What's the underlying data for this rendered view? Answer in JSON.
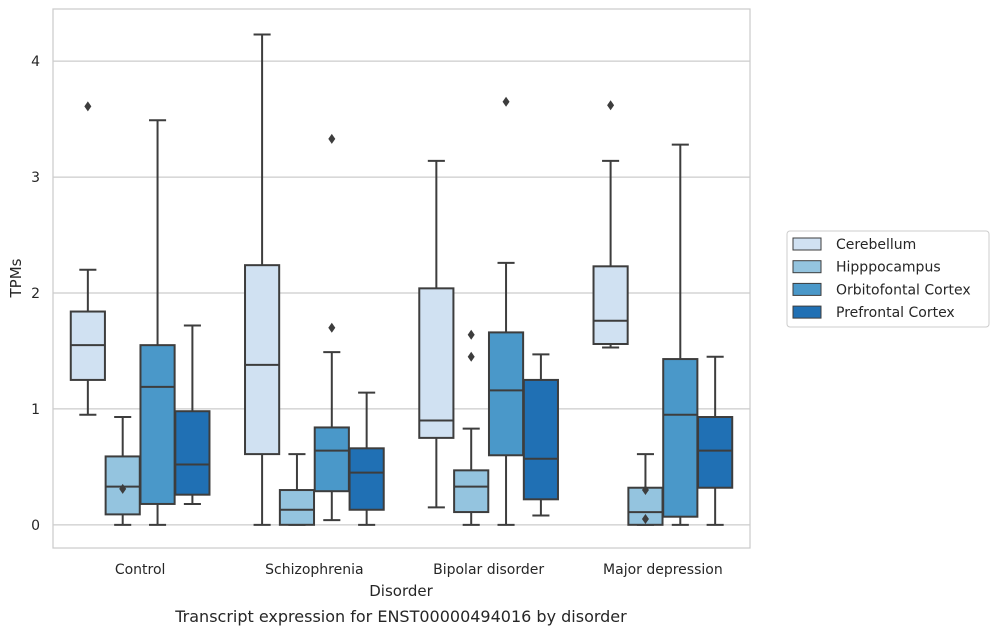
{
  "chart_data": {
    "type": "box",
    "title": "",
    "caption": "Transcript expression for ENST00000494016 by disorder",
    "xlabel": "Disorder",
    "ylabel": "TPMs",
    "ylim": [
      -0.2,
      4.45
    ],
    "yticks": [
      0,
      1,
      2,
      3,
      4
    ],
    "grid": "horizontal",
    "legend_position": "right",
    "categories": [
      "Control",
      "Schizophrenia",
      "Bipolar disorder",
      "Major depression"
    ],
    "series": [
      {
        "name": "Cerebellum",
        "color": "#d0e1f2",
        "boxes": [
          {
            "whislo": 0.95,
            "q1": 1.25,
            "med": 1.55,
            "q3": 1.84,
            "whishi": 2.2,
            "fliers": [
              3.61
            ]
          },
          {
            "whislo": 0.0,
            "q1": 0.61,
            "med": 1.38,
            "q3": 2.24,
            "whishi": 4.23,
            "fliers": []
          },
          {
            "whislo": 0.15,
            "q1": 0.75,
            "med": 0.9,
            "q3": 2.04,
            "whishi": 3.14,
            "fliers": []
          },
          {
            "whislo": 1.53,
            "q1": 1.56,
            "med": 1.76,
            "q3": 2.23,
            "whishi": 3.14,
            "fliers": [
              3.62
            ]
          }
        ]
      },
      {
        "name": "Hipppocampus",
        "color": "#94c4df",
        "boxes": [
          {
            "whislo": 0.0,
            "q1": 0.09,
            "med": 0.33,
            "q3": 0.59,
            "whishi": 0.93,
            "fliers": [
              0.31
            ]
          },
          {
            "whislo": 0.0,
            "q1": 0.0,
            "med": 0.13,
            "q3": 0.3,
            "whishi": 0.61,
            "fliers": []
          },
          {
            "whislo": 0.0,
            "q1": 0.11,
            "med": 0.33,
            "q3": 0.47,
            "whishi": 0.83,
            "fliers": [
              1.45,
              1.64
            ]
          },
          {
            "whislo": 0.0,
            "q1": 0.0,
            "med": 0.11,
            "q3": 0.32,
            "whishi": 0.61,
            "fliers": [
              0.05,
              0.3
            ]
          }
        ]
      },
      {
        "name": "Orbitofontal Cortex",
        "color": "#4a98c9",
        "boxes": [
          {
            "whislo": 0.0,
            "q1": 0.18,
            "med": 1.19,
            "q3": 1.55,
            "whishi": 3.49,
            "fliers": []
          },
          {
            "whislo": 0.04,
            "q1": 0.29,
            "med": 0.64,
            "q3": 0.84,
            "whishi": 1.49,
            "fliers": [
              1.7,
              3.33
            ]
          },
          {
            "whislo": 0.0,
            "q1": 0.6,
            "med": 1.16,
            "q3": 1.66,
            "whishi": 2.26,
            "fliers": [
              3.65
            ]
          },
          {
            "whislo": 0.0,
            "q1": 0.07,
            "med": 0.95,
            "q3": 1.43,
            "whishi": 3.28,
            "fliers": []
          }
        ]
      },
      {
        "name": "Prefrontal Cortex",
        "color": "#2070b4",
        "boxes": [
          {
            "whislo": 0.18,
            "q1": 0.26,
            "med": 0.52,
            "q3": 0.98,
            "whishi": 1.72,
            "fliers": []
          },
          {
            "whislo": 0.0,
            "q1": 0.13,
            "med": 0.45,
            "q3": 0.66,
            "whishi": 1.14,
            "fliers": []
          },
          {
            "whislo": 0.08,
            "q1": 0.22,
            "med": 0.57,
            "q3": 1.25,
            "whishi": 1.47,
            "fliers": []
          },
          {
            "whislo": 0.0,
            "q1": 0.32,
            "med": 0.64,
            "q3": 0.93,
            "whishi": 1.45,
            "fliers": []
          }
        ]
      }
    ]
  }
}
